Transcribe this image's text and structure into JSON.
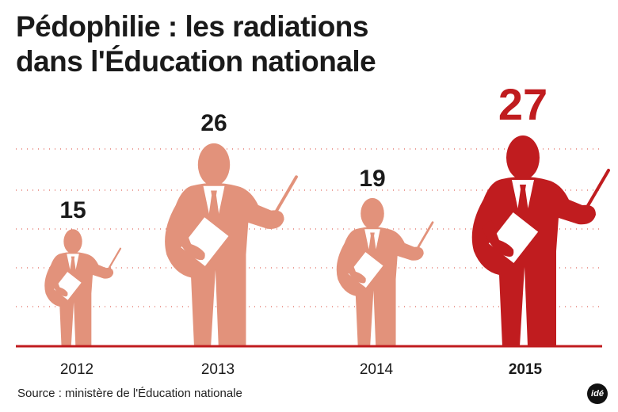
{
  "title_line1": "Pédophilie : les radiations",
  "title_line2": "dans l'Éducation nationale",
  "source": "Source : ministère de l'Éducation nationale",
  "logo": "idé",
  "colors": {
    "normal": "#e2927b",
    "highlight": "#c01c1f",
    "grid": "#e0685c",
    "text": "#1a1a1a"
  },
  "chart_data": {
    "type": "bar",
    "title": "Pédophilie : les radiations dans l'Éducation nationale",
    "xlabel": "",
    "ylabel": "",
    "categories": [
      "2012",
      "2013",
      "2014",
      "2015"
    ],
    "values": [
      15,
      26,
      19,
      27
    ],
    "highlight": "2015",
    "ylim": [
      0,
      27
    ],
    "grid": true
  }
}
